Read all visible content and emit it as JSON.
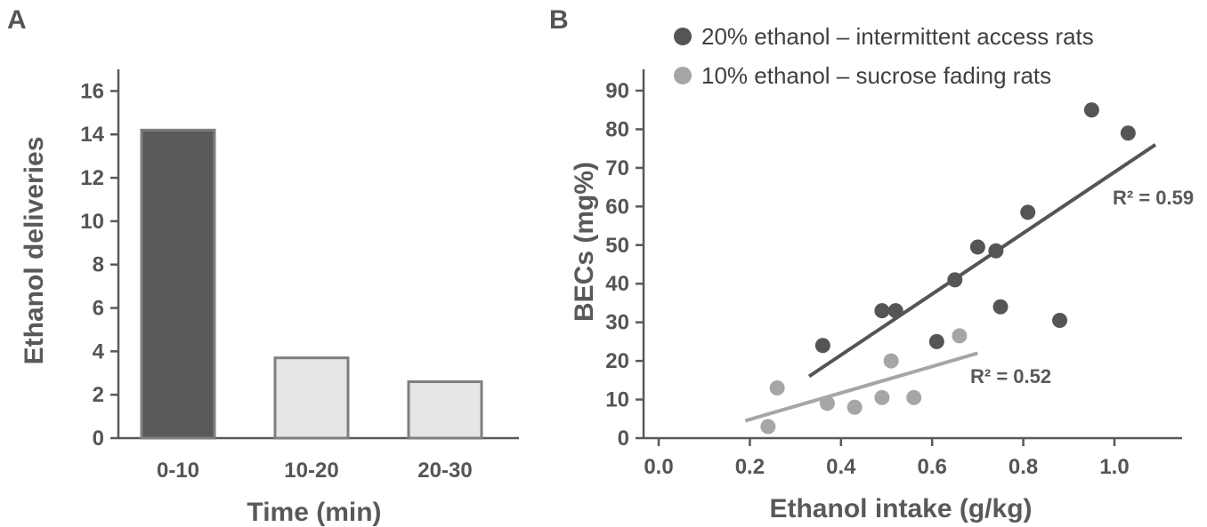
{
  "panels": {
    "a_label": "A",
    "b_label": "B"
  },
  "colors": {
    "axis": "#595959",
    "bar_dark": "#595959",
    "bar_light": "#e6e6e6",
    "bar_stroke": "#7f7f7f",
    "series_dark": "#555555",
    "series_light": "#a6a6a6"
  },
  "chart_data": [
    {
      "type": "bar",
      "panel": "A",
      "categories": [
        "0-10",
        "10-20",
        "20-30"
      ],
      "values": [
        14.2,
        3.7,
        2.6
      ],
      "xlabel": "Time (min)",
      "ylabel": "Ethanol deliveries",
      "ylim": [
        0,
        17
      ],
      "yticks": [
        0,
        2,
        4,
        6,
        8,
        10,
        12,
        14,
        16
      ],
      "grid": false
    },
    {
      "type": "scatter",
      "panel": "B",
      "xlabel": "Ethanol intake (g/kg)",
      "ylabel": "BECs (mg%)",
      "xlim": [
        0,
        1.15
      ],
      "ylim": [
        0,
        95
      ],
      "xticks": [
        "0.0",
        "0.2",
        "0.4",
        "0.6",
        "0.8",
        "1.0"
      ],
      "yticks": [
        0,
        10,
        20,
        30,
        40,
        50,
        60,
        70,
        80,
        90
      ],
      "grid": false,
      "legend_position": "top",
      "series": [
        {
          "name": "20% ethanol – intermittent access rats",
          "points": [
            [
              0.36,
              24
            ],
            [
              0.49,
              33
            ],
            [
              0.52,
              33
            ],
            [
              0.61,
              25
            ],
            [
              0.65,
              41
            ],
            [
              0.7,
              49.5
            ],
            [
              0.74,
              48.5
            ],
            [
              0.75,
              34
            ],
            [
              0.81,
              58.5
            ],
            [
              0.88,
              30.5
            ],
            [
              0.95,
              85
            ],
            [
              1.03,
              79
            ]
          ],
          "fit": [
            [
              0.33,
              16
            ],
            [
              1.09,
              76
            ]
          ],
          "r2_label": "R² = 0.59"
        },
        {
          "name": "10% ethanol – sucrose fading rats",
          "points": [
            [
              0.24,
              3
            ],
            [
              0.26,
              13
            ],
            [
              0.37,
              9
            ],
            [
              0.43,
              8
            ],
            [
              0.49,
              10.5
            ],
            [
              0.51,
              20
            ],
            [
              0.56,
              10.5
            ],
            [
              0.66,
              26.5
            ]
          ],
          "fit": [
            [
              0.19,
              4.5
            ],
            [
              0.7,
              22
            ]
          ],
          "r2_label": "R² = 0.52"
        }
      ]
    }
  ]
}
